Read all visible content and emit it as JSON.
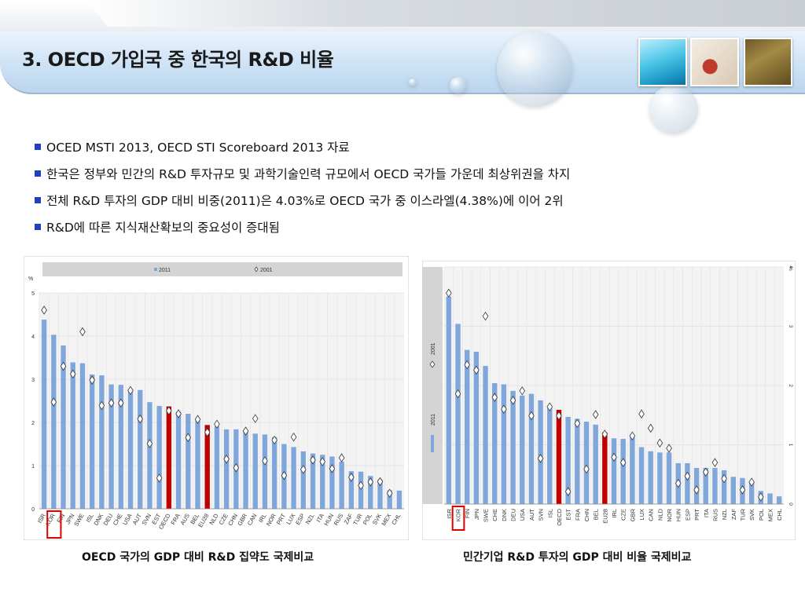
{
  "slide": {
    "title": "3. OECD 가입국 중 한국의 R&D 비율",
    "bullets": [
      "OCED MSTI 2013, OECD STI Scoreboard 2013 자료",
      "한국은 정부와 민간의 R&D 투자규모 및 과학기술인력 규모에서 OECD 국가들 가운데 최상위권을 차지",
      "전체 R&D 투자의 GDP 대비 비중(2011)은 4.03%로 OECD 국가 중 이스라엘(4.38%)에 이어 2위",
      "R&D에 따른 지식재산확보의 중요성이 증대됨"
    ],
    "left_caption": "OECD 국가의 GDP 대비 R&D 집약도 국제비교",
    "right_caption": "민간기업 R&D 투자의 GDP 대비 비율 국제비교",
    "colors": {
      "bar": "#7fa7dc",
      "highlight": "#c00000",
      "title_bar": "#cde2f5",
      "bullet": "#1f3fbf"
    }
  },
  "chart_data": [
    {
      "type": "bar",
      "ylabel": "%",
      "ylim": [
        0,
        5
      ],
      "yticks": [
        0,
        1,
        2,
        3,
        4,
        5
      ],
      "legend": [
        "2011",
        "2001"
      ],
      "legend_position": "top",
      "highlight_categories": [
        "OECD",
        "EU28"
      ],
      "boxed_category": "KOR",
      "categories": [
        "ISR",
        "KOR",
        "FIN",
        "JPN",
        "SWE",
        "ISL",
        "DNK",
        "DEU",
        "CHE",
        "USA",
        "AUT",
        "SVN",
        "EST",
        "OECD",
        "FRA",
        "AUS",
        "BEL",
        "EU28",
        "NLD",
        "CZE",
        "CHN",
        "GBR",
        "CAN",
        "IRL",
        "NOR",
        "PRT",
        "LUX",
        "ESP",
        "NZL",
        "ITA",
        "HUN",
        "RUS",
        "ZAF",
        "TUR",
        "POL",
        "SVK",
        "MEX",
        "CHL"
      ],
      "series": [
        {
          "name": "2011",
          "values": [
            4.38,
            4.03,
            3.78,
            3.39,
            3.37,
            3.11,
            3.09,
            2.88,
            2.87,
            2.77,
            2.75,
            2.47,
            2.38,
            2.37,
            2.25,
            2.2,
            2.04,
            1.94,
            1.91,
            1.84,
            1.84,
            1.78,
            1.74,
            1.72,
            1.66,
            1.5,
            1.43,
            1.33,
            1.28,
            1.25,
            1.21,
            1.09,
            0.87,
            0.86,
            0.76,
            0.68,
            0.43,
            0.42
          ]
        },
        {
          "name": "2001",
          "values": [
            4.6,
            2.47,
            3.3,
            3.12,
            4.1,
            2.98,
            2.39,
            2.45,
            2.45,
            2.74,
            2.08,
            1.51,
            0.71,
            2.27,
            2.2,
            1.65,
            2.07,
            1.77,
            1.96,
            1.15,
            0.95,
            1.8,
            2.09,
            1.11,
            1.59,
            0.77,
            1.66,
            0.91,
            1.13,
            1.09,
            0.93,
            1.18,
            0.73,
            0.54,
            0.62,
            0.63,
            0.36,
            null
          ]
        }
      ]
    },
    {
      "type": "bar",
      "ylabel": "%",
      "ylim": [
        0,
        4
      ],
      "yticks": [
        0,
        1,
        2,
        3,
        4
      ],
      "legend": [
        "2011",
        "2001"
      ],
      "legend_position": "left",
      "highlight_categories": [
        "OECD",
        "EU28"
      ],
      "boxed_category": "KOR",
      "categories": [
        "ISR",
        "KOR",
        "FIN",
        "JPN",
        "SWE",
        "CHE",
        "DNK",
        "DEU",
        "USA",
        "AUT",
        "SVN",
        "ISL",
        "OECD",
        "EST",
        "FRA",
        "CHN",
        "BEL",
        "EU28",
        "IRL",
        "CZE",
        "GBR",
        "LUX",
        "CAN",
        "NLD",
        "NOR",
        "HUN",
        "ESP",
        "PRT",
        "ITA",
        "RUS",
        "NZL",
        "ZAF",
        "TUR",
        "SVK",
        "POL",
        "MEX",
        "CHL"
      ],
      "series": [
        {
          "name": "2011",
          "values": [
            3.5,
            3.04,
            2.6,
            2.57,
            2.33,
            2.04,
            2.02,
            1.91,
            1.83,
            1.86,
            1.75,
            1.66,
            1.59,
            1.47,
            1.44,
            1.39,
            1.34,
            1.21,
            1.11,
            1.1,
            1.14,
            0.96,
            0.89,
            0.87,
            0.87,
            0.69,
            0.69,
            0.61,
            0.61,
            0.61,
            0.57,
            0.46,
            0.44,
            0.36,
            0.22,
            0.18,
            0.13
          ]
        },
        {
          "name": "2001",
          "values": [
            3.56,
            1.86,
            2.35,
            2.26,
            3.17,
            1.8,
            1.6,
            1.75,
            1.91,
            1.49,
            0.77,
            1.64,
            1.49,
            0.21,
            1.36,
            0.59,
            1.51,
            1.18,
            0.79,
            0.7,
            1.15,
            1.52,
            1.28,
            1.03,
            0.94,
            0.35,
            0.47,
            0.24,
            0.54,
            0.7,
            0.43,
            null,
            0.24,
            0.37,
            0.12,
            null,
            null
          ]
        }
      ]
    }
  ]
}
